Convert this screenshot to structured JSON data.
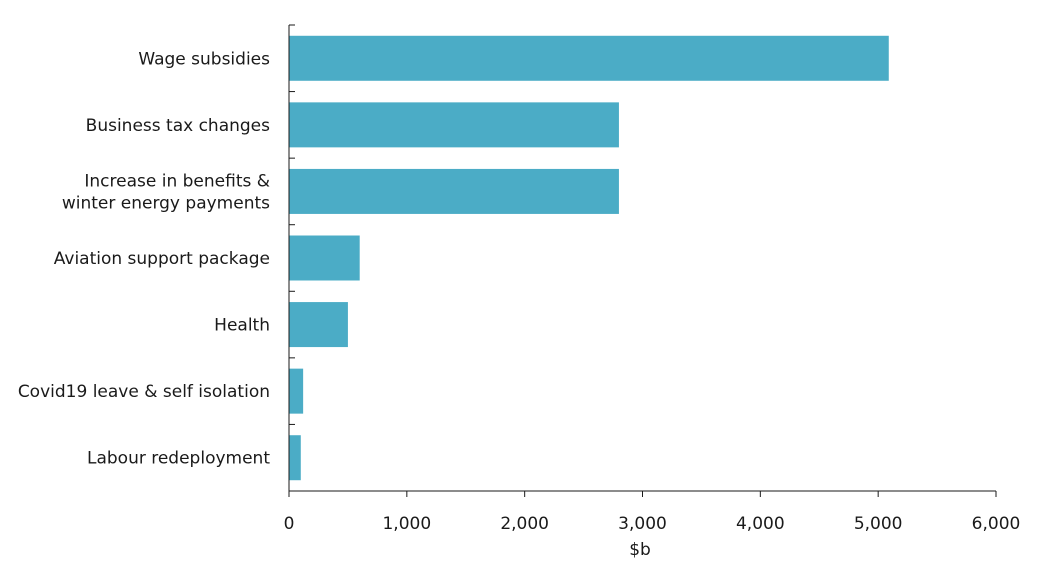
{
  "chart_data": {
    "type": "bar",
    "orientation": "horizontal",
    "title": "",
    "xlabel": "$b",
    "ylabel": "",
    "categories": [
      [
        "Wage subsidies"
      ],
      [
        "Business tax changes"
      ],
      [
        "Increase in benefits &",
        "winter energy payments"
      ],
      [
        "Aviation support package"
      ],
      [
        "Health"
      ],
      [
        "Covid19 leave & self isolation"
      ],
      [
        "Labour redeployment"
      ]
    ],
    "values": [
      5090,
      2800,
      2800,
      600,
      500,
      120,
      100
    ],
    "xlim": [
      0,
      6000
    ],
    "x_ticks": [
      0,
      1000,
      2000,
      3000,
      4000,
      5000,
      6000
    ],
    "x_tick_labels": [
      "0",
      "1,000",
      "2,000",
      "3,000",
      "4,000",
      "5,000",
      "6,000"
    ],
    "bar_color": "#4bacc6",
    "axis_color": "#1a1a1a",
    "grid": false,
    "legend": "none"
  }
}
